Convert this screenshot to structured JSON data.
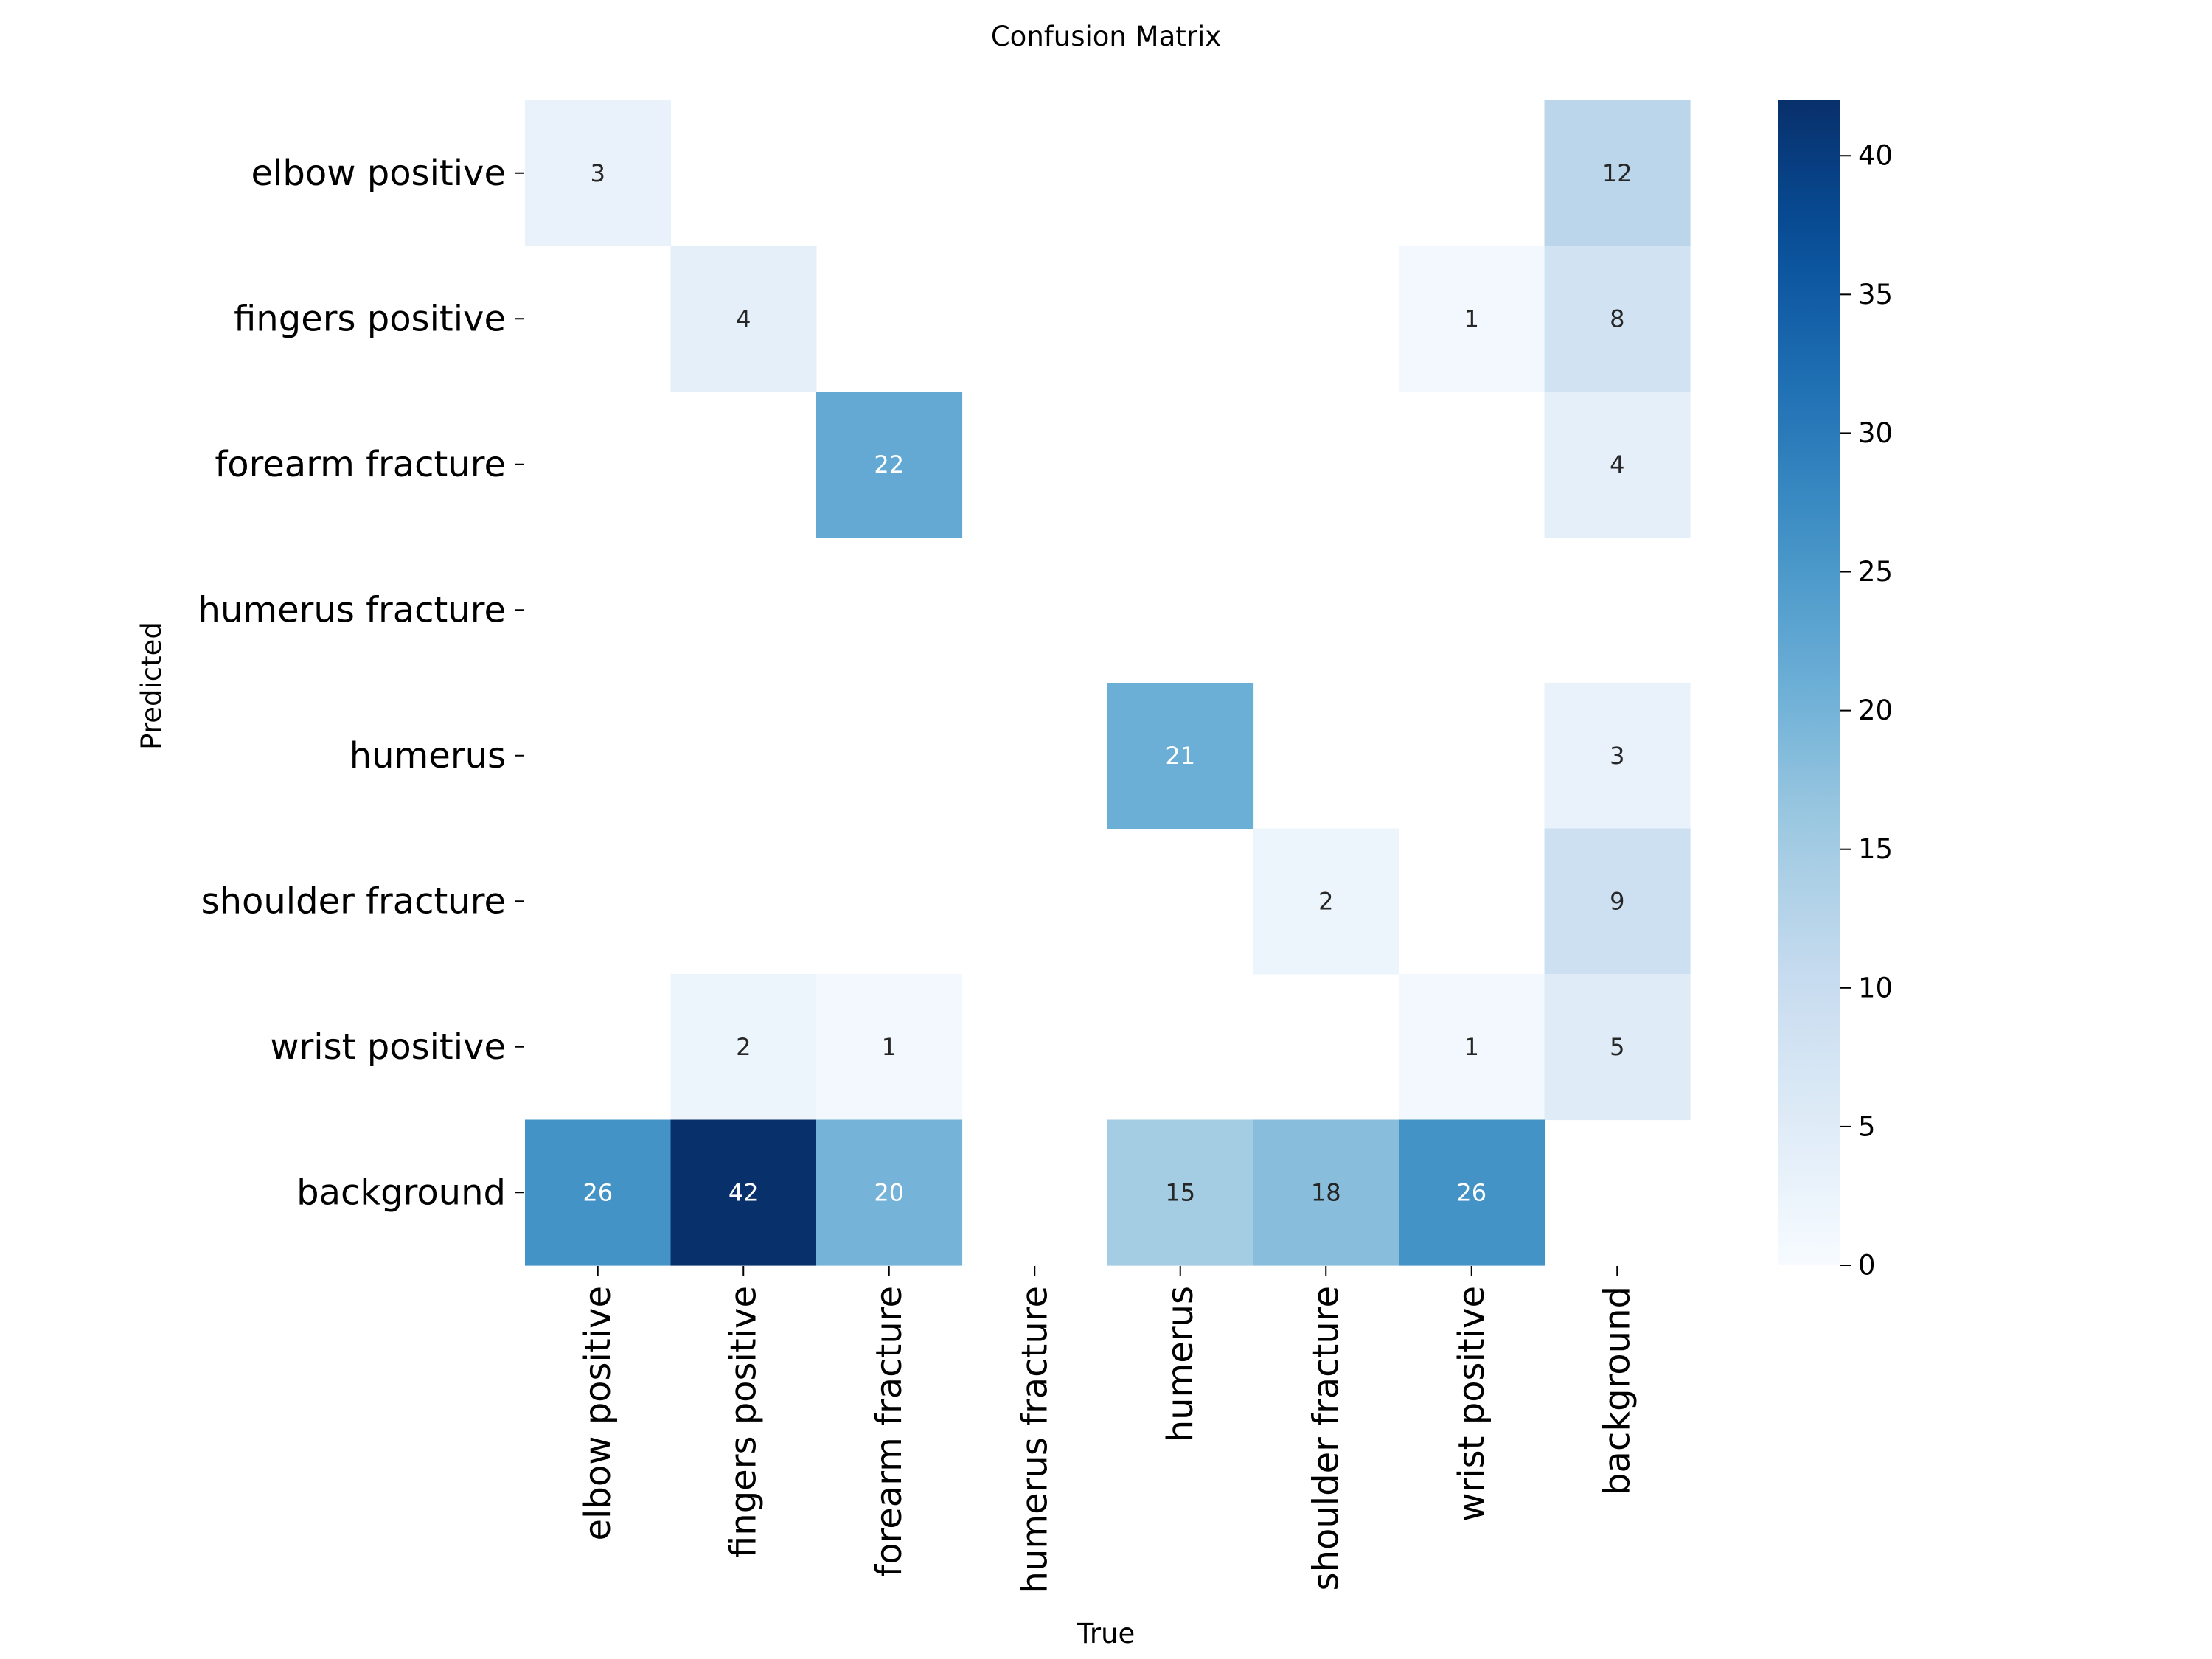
{
  "chart_data": {
    "type": "heatmap",
    "title": "Confusion Matrix",
    "xlabel": "True",
    "ylabel": "Predicted",
    "x_categories": [
      "elbow positive",
      "fingers positive",
      "forearm fracture",
      "humerus fracture",
      "humerus",
      "shoulder fracture",
      "wrist positive",
      "background"
    ],
    "y_categories": [
      "elbow positive",
      "fingers positive",
      "forearm fracture",
      "humerus fracture",
      "humerus",
      "shoulder fracture",
      "wrist positive",
      "background"
    ],
    "matrix": [
      [
        3,
        null,
        null,
        null,
        null,
        null,
        null,
        12
      ],
      [
        null,
        4,
        null,
        null,
        null,
        null,
        1,
        8
      ],
      [
        null,
        null,
        22,
        null,
        null,
        null,
        null,
        4
      ],
      [
        null,
        null,
        null,
        null,
        null,
        null,
        null,
        null
      ],
      [
        null,
        null,
        null,
        null,
        21,
        null,
        null,
        3
      ],
      [
        null,
        null,
        null,
        null,
        null,
        2,
        null,
        9
      ],
      [
        null,
        2,
        1,
        null,
        null,
        null,
        1,
        5
      ],
      [
        26,
        42,
        20,
        null,
        15,
        18,
        26,
        null
      ]
    ],
    "colormap": "Blues",
    "vmin": 0,
    "vmax": 42,
    "colorbar_ticks": [
      0,
      5,
      10,
      15,
      20,
      25,
      30,
      35,
      40
    ],
    "grid": false
  }
}
